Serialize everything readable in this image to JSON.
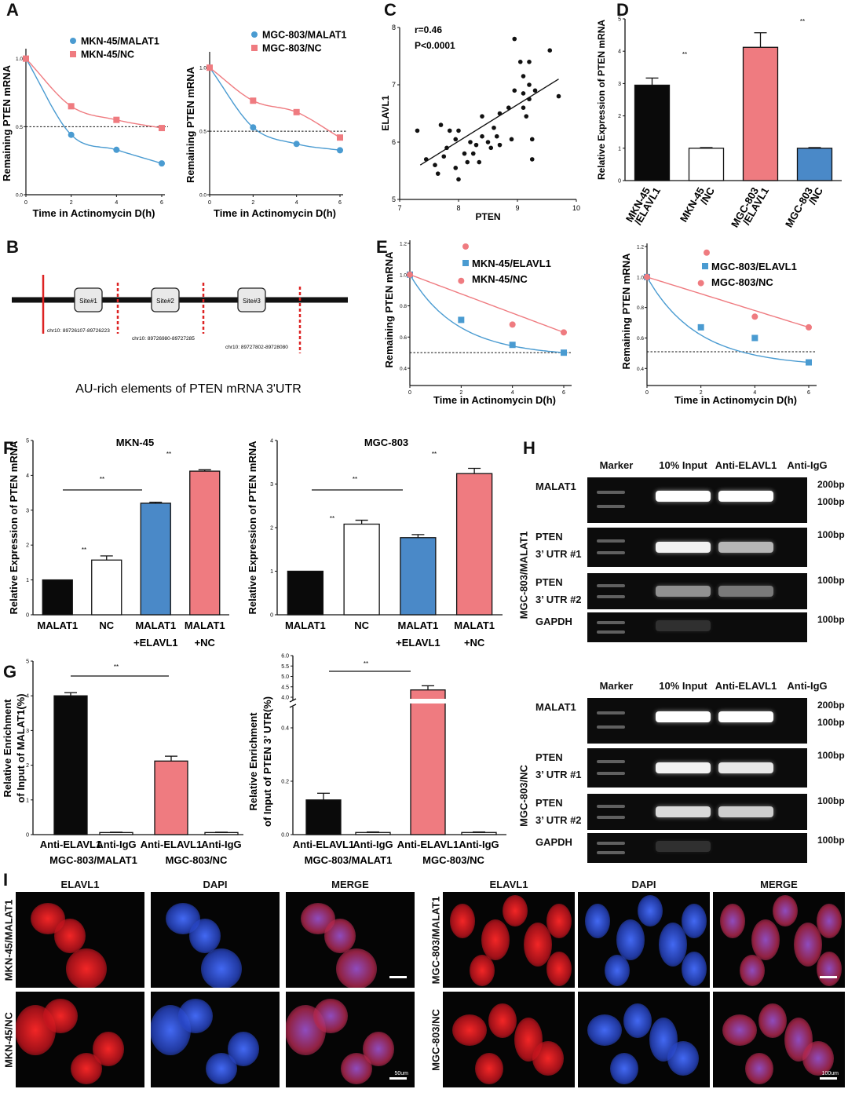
{
  "panel_letters": {
    "A": "A",
    "B": "B",
    "C": "C",
    "D": "D",
    "E": "E",
    "F": "F",
    "G": "G",
    "H": "H",
    "I": "I"
  },
  "stats": {
    "sig": "**"
  },
  "chart_data": [
    {
      "id": "A1",
      "type": "line",
      "ylabel": "Remaining PTEN mRNA",
      "xlabel": "Time in Actinomycin D(h)",
      "x_ticks": [
        0,
        2,
        4,
        6
      ],
      "y_ticks": [
        0.0,
        0.5,
        1.0
      ],
      "ylim": [
        0.0,
        1.05
      ],
      "series": [
        {
          "name": "MKN-45/MALAT1",
          "color": "#4a9bd1",
          "marker": "circle",
          "x": [
            0,
            2,
            4,
            6
          ],
          "y": [
            1.0,
            0.44,
            0.33,
            0.23
          ]
        },
        {
          "name": "MKN-45/NC",
          "color": "#ef7b80",
          "marker": "square",
          "x": [
            0,
            2,
            4,
            6
          ],
          "y": [
            1.0,
            0.65,
            0.55,
            0.49
          ]
        }
      ],
      "reference_line": 0.5
    },
    {
      "id": "A2",
      "type": "line",
      "ylabel": "Remaining PTEN mRNA",
      "xlabel": "Time in Actinomycin D(h)",
      "x_ticks": [
        0,
        2,
        4,
        6
      ],
      "y_ticks": [
        0.0,
        0.5,
        1.0
      ],
      "ylim": [
        0.0,
        1.1
      ],
      "series": [
        {
          "name": "MGC-803/MALAT1",
          "color": "#4a9bd1",
          "marker": "circle",
          "x": [
            0,
            2,
            4,
            6
          ],
          "y": [
            1.0,
            0.53,
            0.4,
            0.35
          ]
        },
        {
          "name": "MGC-803/NC",
          "color": "#ef7b80",
          "marker": "square",
          "x": [
            0,
            2,
            4,
            6
          ],
          "y": [
            1.0,
            0.74,
            0.65,
            0.45
          ]
        }
      ],
      "reference_line": 0.5
    },
    {
      "id": "C",
      "type": "scatter",
      "xlabel": "PTEN",
      "ylabel": "ELAVL1",
      "x_ticks": [
        7,
        8,
        9,
        10
      ],
      "y_ticks": [
        5,
        6,
        7,
        8
      ],
      "xlim": [
        7,
        10
      ],
      "ylim": [
        5,
        8
      ],
      "annotation_r": "r=0.46",
      "annotation_p": "P<0.0001",
      "points": [
        [
          7.3,
          6.2
        ],
        [
          7.45,
          5.7
        ],
        [
          7.6,
          5.6
        ],
        [
          7.65,
          5.45
        ],
        [
          7.75,
          5.75
        ],
        [
          7.7,
          6.3
        ],
        [
          7.8,
          5.9
        ],
        [
          7.85,
          6.2
        ],
        [
          7.95,
          6.05
        ],
        [
          7.95,
          5.55
        ],
        [
          8.0,
          5.35
        ],
        [
          8.0,
          6.2
        ],
        [
          8.1,
          5.8
        ],
        [
          8.15,
          5.65
        ],
        [
          8.2,
          6.0
        ],
        [
          8.25,
          5.8
        ],
        [
          8.3,
          5.95
        ],
        [
          8.35,
          5.65
        ],
        [
          8.4,
          6.1
        ],
        [
          8.4,
          6.45
        ],
        [
          8.5,
          6.0
        ],
        [
          8.55,
          5.9
        ],
        [
          8.6,
          6.25
        ],
        [
          8.65,
          6.1
        ],
        [
          8.7,
          6.5
        ],
        [
          8.7,
          5.95
        ],
        [
          8.85,
          6.6
        ],
        [
          8.9,
          6.05
        ],
        [
          8.95,
          7.8
        ],
        [
          8.95,
          6.9
        ],
        [
          9.05,
          7.4
        ],
        [
          9.1,
          7.15
        ],
        [
          9.1,
          6.85
        ],
        [
          9.1,
          6.6
        ],
        [
          9.15,
          6.45
        ],
        [
          9.2,
          7.0
        ],
        [
          9.2,
          6.75
        ],
        [
          9.2,
          7.4
        ],
        [
          9.25,
          5.7
        ],
        [
          9.25,
          6.05
        ],
        [
          9.3,
          6.9
        ],
        [
          9.55,
          7.6
        ],
        [
          9.7,
          6.8
        ]
      ],
      "fit": {
        "x": [
          7.35,
          9.7
        ],
        "y": [
          5.6,
          7.1
        ]
      }
    },
    {
      "id": "D",
      "type": "bar",
      "ylabel": "Relative Expression of PTEN mRNA",
      "categories": [
        "MKN-45\n/ELAVL1",
        "MKN-45\n/NC",
        "MGC-803\n/ELAVL1",
        "MGC-803\n/NC"
      ],
      "values": [
        2.95,
        1.0,
        4.12,
        1.0
      ],
      "errors": [
        0.22,
        0.02,
        0.45,
        0.02
      ],
      "colors": [
        "#0a0a0a",
        "#ffffff",
        "#ef7b80",
        "#4a89c8"
      ],
      "y_ticks": [
        0,
        1,
        2,
        3,
        4,
        5
      ],
      "ylim": [
        0,
        5
      ]
    },
    {
      "id": "E1",
      "type": "line",
      "ylabel": "Remaining PTEN mRNA",
      "xlabel": "Time in Actinomycin D(h)",
      "x_ticks": [
        0,
        2,
        4,
        6
      ],
      "y_ticks": [
        0.4,
        0.6,
        0.8,
        1.0,
        1.2
      ],
      "ylim": [
        0.35,
        1.2
      ],
      "series": [
        {
          "name": "MKN-45/ELAVL1",
          "color": "#4a9bd1",
          "marker": "square",
          "x": [
            0,
            2,
            4,
            6
          ],
          "y": [
            1.0,
            0.71,
            0.55,
            0.5
          ]
        },
        {
          "name": "MKN-45/NC",
          "color": "#ef7b80",
          "marker": "circle",
          "x": [
            0,
            2,
            4,
            6
          ],
          "y": [
            1.0,
            0.96,
            0.68,
            0.63
          ]
        }
      ],
      "legend_marker_y": 1.18,
      "reference_line": 0.5
    },
    {
      "id": "E2",
      "type": "line",
      "ylabel": "Remaining PTEN mRNA",
      "xlabel": "Time in Actinomycin D(h)",
      "x_ticks": [
        0,
        2,
        4,
        6
      ],
      "y_ticks": [
        0.4,
        0.6,
        0.8,
        1.0,
        1.2
      ],
      "ylim": [
        0.35,
        1.2
      ],
      "series": [
        {
          "name": "MGC-803/ELAVL1",
          "color": "#4a9bd1",
          "marker": "square",
          "x": [
            0,
            2,
            4,
            6
          ],
          "y": [
            1.0,
            0.67,
            0.6,
            0.44
          ]
        },
        {
          "name": "MGC-803/NC",
          "color": "#ef7b80",
          "marker": "circle",
          "x": [
            0,
            2,
            4,
            6
          ],
          "y": [
            1.0,
            0.96,
            0.74,
            0.67
          ]
        }
      ],
      "legend_marker_y": 1.16,
      "reference_line": 0.51
    },
    {
      "id": "F1",
      "type": "bar",
      "title": "MKN-45",
      "ylabel": "Relative Expression of PTEN mRNA",
      "categories": [
        "MALAT1",
        "NC",
        "MALAT1\n+ELAVL1",
        "MALAT1\n+NC"
      ],
      "values": [
        1.0,
        1.57,
        3.2,
        4.12
      ],
      "errors": [
        0.0,
        0.12,
        0.03,
        0.04
      ],
      "colors": [
        "#0a0a0a",
        "#ffffff",
        "#4a89c8",
        "#ef7b80"
      ],
      "y_ticks": [
        0,
        1,
        2,
        3,
        4,
        5
      ],
      "ylim": [
        0,
        5
      ]
    },
    {
      "id": "F2",
      "type": "bar",
      "title": "MGC-803",
      "ylabel": "Relative Expression of PTEN mRNA",
      "categories": [
        "MALAT1",
        "NC",
        "MALAT1\n+ELAVL1",
        "MALAT1\n+NC"
      ],
      "values": [
        1.0,
        2.08,
        1.77,
        3.24
      ],
      "errors": [
        0.0,
        0.09,
        0.07,
        0.12
      ],
      "colors": [
        "#0a0a0a",
        "#ffffff",
        "#4a89c8",
        "#ef7b80"
      ],
      "y_ticks": [
        0,
        1,
        2,
        3,
        4
      ],
      "ylim": [
        0,
        4
      ]
    },
    {
      "id": "G1",
      "type": "bar",
      "ylabel": "Relative Enrichment of Input of MALAT1(%)",
      "categories": [
        "Anti-ELAVL1",
        "Anti-IgG",
        "Anti-ELAVL1",
        "Anti-IgG"
      ],
      "groups": [
        "MGC-803/MALAT1",
        "MGC-803/NC"
      ],
      "values": [
        4.0,
        0.06,
        2.12,
        0.06
      ],
      "errors": [
        0.09,
        0.01,
        0.14,
        0.01
      ],
      "colors": [
        "#0a0a0a",
        "#ffffff",
        "#ef7b80",
        "#ffffff"
      ],
      "y_ticks": [
        0,
        1,
        2,
        3,
        4,
        5
      ],
      "ylim": [
        0,
        5
      ]
    },
    {
      "id": "G2",
      "type": "bar",
      "ylabel": "Relative Enrichment of Input of PTEN 3' UTR(%)",
      "categories": [
        "Anti-ELAVL1",
        "Anti-IgG",
        "Anti-ELAVL1",
        "Anti-IgG"
      ],
      "groups": [
        "MGC-803/MALAT1",
        "MGC-803/NC"
      ],
      "values": [
        0.13,
        0.008,
        4.35,
        0.008
      ],
      "errors": [
        0.025,
        0.002,
        0.2,
        0.002
      ],
      "colors": [
        "#0a0a0a",
        "#ffffff",
        "#ef7b80",
        "#ffffff"
      ],
      "y_ticks_lower": [
        0.0,
        0.2,
        0.4
      ],
      "y_ticks_upper": [
        4.0,
        4.5,
        5.0,
        5.5,
        6.0
      ],
      "broken_axis": true
    }
  ],
  "panelB": {
    "sites": [
      "Site#1",
      "Site#2",
      "Site#3"
    ],
    "coords": [
      "chr10: 89726107-89726223",
      "chr10: 89726980-89727285",
      "chr10: 89727802-89728080"
    ],
    "caption": "AU-rich elements of PTEN mRNA 3'UTR"
  },
  "panelH": {
    "lanes": [
      "Marker",
      "10% Input",
      "Anti-ELAVL1",
      "Anti-IgG"
    ],
    "blocks": [
      {
        "side_label": "MGC-803/MALAT1",
        "rows": [
          {
            "label1": "MALAT1",
            "label2": "",
            "sizes": [
              "200bp",
              "100bp"
            ]
          },
          {
            "label1": "PTEN",
            "label2": "3’ UTR #1",
            "sizes": [
              "100bp"
            ]
          },
          {
            "label1": "PTEN",
            "label2": "3’ UTR #2",
            "sizes": [
              "100bp"
            ]
          },
          {
            "label1": "GAPDH",
            "label2": "",
            "sizes": [
              "100bp"
            ]
          }
        ]
      },
      {
        "side_label": "MGC-803/NC",
        "rows": [
          {
            "label1": "MALAT1",
            "label2": "",
            "sizes": [
              "200bp",
              "100bp"
            ]
          },
          {
            "label1": "PTEN",
            "label2": "3’ UTR #1",
            "sizes": [
              "100bp"
            ]
          },
          {
            "label1": "PTEN",
            "label2": "3’ UTR #2",
            "sizes": [
              "100bp"
            ]
          },
          {
            "label1": "GAPDH",
            "label2": "",
            "sizes": [
              "100bp"
            ]
          }
        ]
      }
    ]
  },
  "panelI": {
    "columns": [
      "ELAVL1",
      "DAPI",
      "MERGE"
    ],
    "left_rows": [
      "MKN-45/MALAT1",
      "MKN-45/NC"
    ],
    "right_rows": [
      "MGC-803/MALAT1",
      "MGC-803/NC"
    ],
    "scale_left": "50um",
    "scale_right": "100um"
  },
  "colors": {
    "blue": "#4a9bd1",
    "red": "#ef7b80",
    "black": "#0a0a0a"
  }
}
